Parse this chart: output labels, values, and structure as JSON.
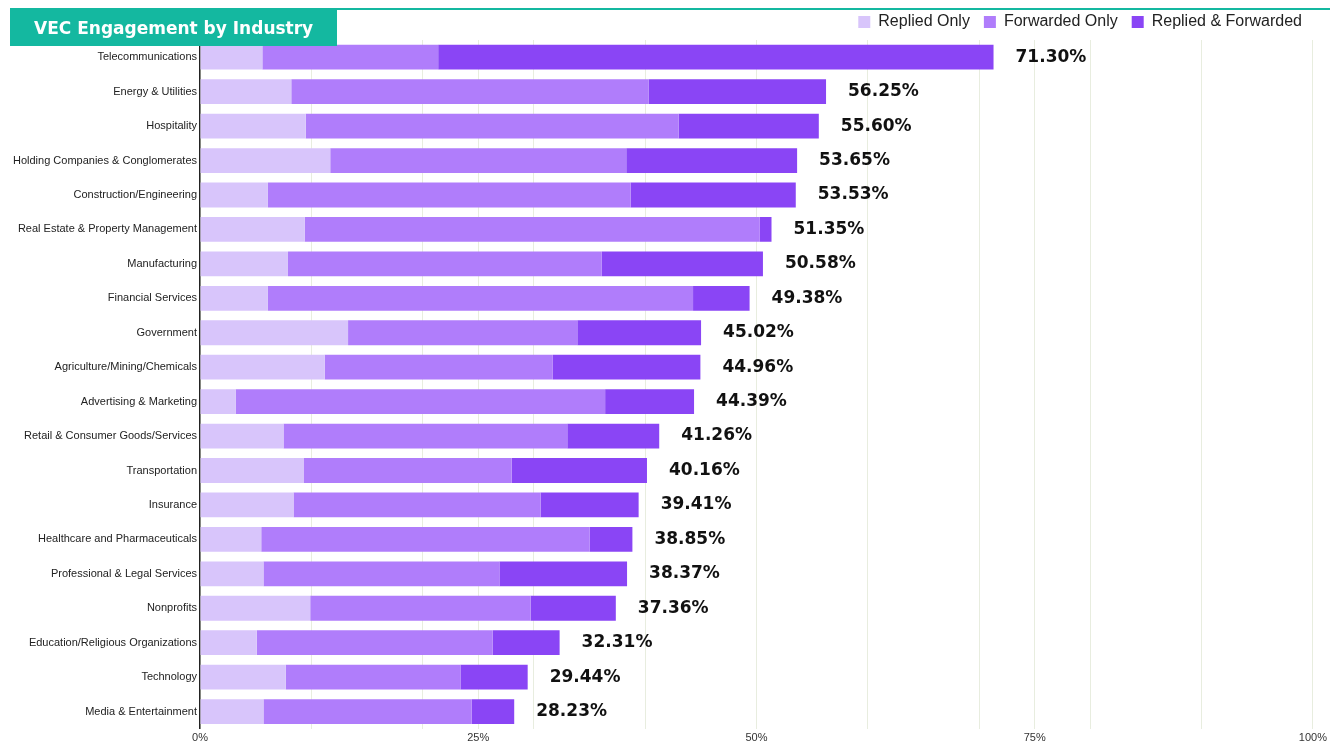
{
  "chart_data": {
    "type": "bar",
    "orientation": "horizontal",
    "stacked": true,
    "title": "VEC Engagement by Industry",
    "categories": [
      "Telecommunications",
      "Energy & Utilities",
      "Hospitality",
      "Holding Companies & Conglomerates",
      "Construction/Engineering",
      "Real Estate & Property Management",
      "Manufacturing",
      "Financial Services",
      "Government",
      "Agriculture/Mining/Chemicals",
      "Advertising & Marketing",
      "Retail & Consumer Goods/Services",
      "Transportation",
      "Insurance",
      "Healthcare and Pharmaceuticals",
      "Professional & Legal Services",
      "Nonprofits",
      "Education/Religious Organizations",
      "Technology",
      "Media & Entertainment"
    ],
    "series": [
      {
        "name": "Replied Only",
        "color": "#d8c5fb",
        "values": [
          5.6,
          8.2,
          9.5,
          11.7,
          6.1,
          9.4,
          7.9,
          6.1,
          13.3,
          11.2,
          3.2,
          7.5,
          9.3,
          8.4,
          5.5,
          5.7,
          9.9,
          5.1,
          7.7,
          5.7
        ]
      },
      {
        "name": "Forwarded Only",
        "color": "#b07dfb",
        "values": [
          15.8,
          32.1,
          33.5,
          26.6,
          32.6,
          40.9,
          28.2,
          38.2,
          20.6,
          20.5,
          33.2,
          25.5,
          18.7,
          22.2,
          29.5,
          21.2,
          19.8,
          21.2,
          15.7,
          18.7
        ]
      },
      {
        "name": "Replied & Forwarded",
        "color": "#8a45f5",
        "values": [
          49.9,
          15.95,
          12.6,
          15.35,
          14.83,
          1.05,
          14.48,
          5.08,
          11.12,
          13.26,
          7.99,
          8.26,
          12.16,
          8.81,
          3.85,
          11.47,
          7.66,
          6.01,
          6.04,
          3.83
        ]
      }
    ],
    "totals": [
      "71.30%",
      "56.25%",
      "55.60%",
      "53.65%",
      "53.53%",
      "51.35%",
      "50.58%",
      "49.38%",
      "45.02%",
      "44.96%",
      "44.39%",
      "41.26%",
      "40.16%",
      "39.41%",
      "38.85%",
      "38.37%",
      "37.36%",
      "32.31%",
      "29.44%",
      "28.23%"
    ],
    "xlim": [
      0,
      100
    ],
    "xticks": [
      {
        "value": 0,
        "label": "0%"
      },
      {
        "value": 10,
        "label": null
      },
      {
        "value": 20,
        "label": null
      },
      {
        "value": 25,
        "label": "25%"
      },
      {
        "value": 30,
        "label": null
      },
      {
        "value": 40,
        "label": null
      },
      {
        "value": 50,
        "label": "50%"
      },
      {
        "value": 60,
        "label": null
      },
      {
        "value": 70,
        "label": null
      },
      {
        "value": 75,
        "label": "75%"
      },
      {
        "value": 80,
        "label": null
      },
      {
        "value": 90,
        "label": null
      },
      {
        "value": 100,
        "label": "100%"
      }
    ],
    "grid": "x",
    "legend": "top right"
  }
}
